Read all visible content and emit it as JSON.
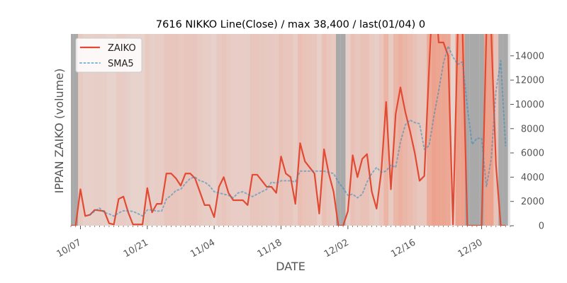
{
  "chart_data": {
    "type": "line",
    "title": "7616 NIKKO Line(Close) / max 38,400 / last(01/04) 0",
    "xlabel": "DATE",
    "ylabel": "IPPAN ZAIKO (volume)",
    "ylim": [
      0,
      15800
    ],
    "xlim": [
      "2019-10-05",
      "2020-01-05"
    ],
    "y_ticks": [
      0,
      2000,
      4000,
      6000,
      8000,
      10000,
      12000,
      14000
    ],
    "y_tick_labels": [
      "0",
      "2000",
      "4000",
      "6000",
      "8000",
      "10000",
      "12000",
      "14000"
    ],
    "x_ticks": [
      "2019-10-07",
      "2019-10-21",
      "2019-11-04",
      "2019-11-18",
      "2019-12-02",
      "2019-12-16",
      "2019-12-30"
    ],
    "x_tick_labels": [
      "10/07",
      "10/21",
      "11/04",
      "11/18",
      "12/02",
      "12/16",
      "12/30"
    ],
    "legend_position": "top-left",
    "grid": false,
    "x": [
      "2019-10-05",
      "2019-10-06",
      "2019-10-07",
      "2019-10-08",
      "2019-10-09",
      "2019-10-10",
      "2019-10-11",
      "2019-10-12",
      "2019-10-13",
      "2019-10-14",
      "2019-10-15",
      "2019-10-16",
      "2019-10-17",
      "2019-10-18",
      "2019-10-19",
      "2019-10-20",
      "2019-10-21",
      "2019-10-22",
      "2019-10-23",
      "2019-10-24",
      "2019-10-25",
      "2019-10-26",
      "2019-10-27",
      "2019-10-28",
      "2019-10-29",
      "2019-10-30",
      "2019-10-31",
      "2019-11-01",
      "2019-11-02",
      "2019-11-03",
      "2019-11-04",
      "2019-11-05",
      "2019-11-06",
      "2019-11-07",
      "2019-11-08",
      "2019-11-09",
      "2019-11-10",
      "2019-11-11",
      "2019-11-12",
      "2019-11-13",
      "2019-11-14",
      "2019-11-15",
      "2019-11-16",
      "2019-11-17",
      "2019-11-18",
      "2019-11-19",
      "2019-11-20",
      "2019-11-21",
      "2019-11-22",
      "2019-11-23",
      "2019-11-24",
      "2019-11-25",
      "2019-11-26",
      "2019-11-27",
      "2019-11-28",
      "2019-11-29",
      "2019-11-30",
      "2019-12-01",
      "2019-12-02",
      "2019-12-03",
      "2019-12-04",
      "2019-12-05",
      "2019-12-06",
      "2019-12-07",
      "2019-12-08",
      "2019-12-09",
      "2019-12-10",
      "2019-12-11",
      "2019-12-12",
      "2019-12-13",
      "2019-12-14",
      "2019-12-15",
      "2019-12-16",
      "2019-12-17",
      "2019-12-18",
      "2019-12-19",
      "2019-12-20",
      "2019-12-21",
      "2019-12-22",
      "2019-12-23",
      "2019-12-24",
      "2019-12-25",
      "2019-12-26",
      "2019-12-27",
      "2019-12-28",
      "2019-12-29",
      "2019-12-30",
      "2019-12-31",
      "2020-01-01",
      "2020-01-02",
      "2020-01-03",
      "2020-01-04"
    ],
    "series": [
      {
        "name": "ZAIKO",
        "color": "#e24a33",
        "style": "solid",
        "values": [
          0,
          0,
          3000,
          800,
          900,
          1300,
          1250,
          1200,
          200,
          100,
          2200,
          2400,
          1100,
          100,
          100,
          100,
          3100,
          1100,
          1800,
          1800,
          4300,
          4300,
          3900,
          3300,
          4300,
          4300,
          3900,
          2800,
          1700,
          1700,
          700,
          3200,
          4000,
          2700,
          2100,
          2100,
          2100,
          1700,
          4200,
          4200,
          3700,
          3200,
          3200,
          2700,
          5700,
          4300,
          4000,
          1800,
          6800,
          5300,
          4800,
          4300,
          1000,
          6300,
          4300,
          2800,
          0,
          0,
          1200,
          5800,
          4000,
          5500,
          5900,
          2800,
          1400,
          4500,
          10200,
          3000,
          9200,
          11400,
          9400,
          7800,
          6000,
          3700,
          4100,
          13000,
          21000,
          15100,
          15100,
          14000,
          100,
          16000,
          16000,
          0,
          0,
          0,
          0,
          16000,
          16000,
          5000,
          0,
          0
        ]
      },
      {
        "name": "SMA5",
        "color": "#348abd",
        "style": "dotted",
        "values": [
          null,
          null,
          null,
          null,
          900,
          1200,
          1450,
          1090,
          970,
          790,
          1050,
          1230,
          1210,
          1180,
          1000,
          800,
          1300,
          1300,
          1200,
          1200,
          2200,
          2500,
          2900,
          3000,
          3500,
          3900,
          4000,
          3700,
          3600,
          3300,
          2800,
          2700,
          2600,
          2500,
          2300,
          2700,
          2800,
          2600,
          2400,
          2600,
          2800,
          3000,
          3600,
          3500,
          3700,
          3700,
          3700,
          3600,
          4500,
          4500,
          4500,
          4500,
          4500,
          4500,
          4400,
          4300,
          3600,
          3100,
          2500,
          2600,
          2300,
          2600,
          3600,
          4300,
          4800,
          4400,
          4500,
          5000,
          4800,
          6900,
          8300,
          8700,
          8500,
          8400,
          6300,
          6600,
          9000,
          11100,
          13400,
          14800,
          13900,
          13300,
          13500,
          9800,
          6700,
          7200,
          7200,
          3200,
          5500,
          11100,
          13600,
          6600
        ]
      }
    ]
  }
}
